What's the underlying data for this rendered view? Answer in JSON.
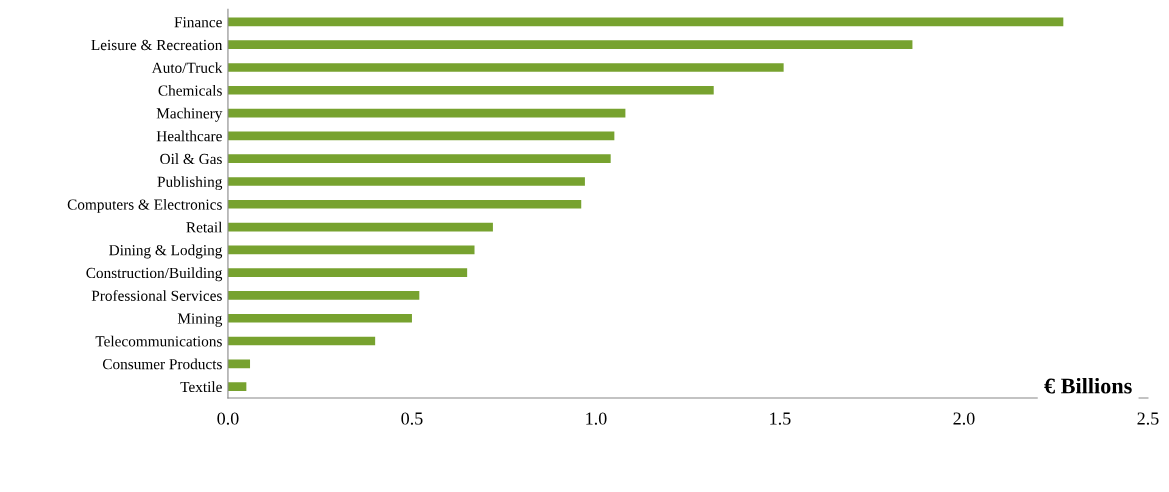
{
  "chart_data": {
    "type": "bar",
    "orientation": "horizontal",
    "xlabel": "€ Billions",
    "categories": [
      "Finance",
      "Leisure & Recreation",
      "Auto/Truck",
      "Chemicals",
      "Machinery",
      "Healthcare",
      "Oil & Gas",
      "Publishing",
      "Computers & Electronics",
      "Retail",
      "Dining & Lodging",
      "Construction/Building",
      "Professional Services",
      "Mining",
      "Telecommunications",
      "Consumer Products",
      "Textile"
    ],
    "values": [
      2.27,
      1.86,
      1.51,
      1.32,
      1.08,
      1.05,
      1.04,
      0.97,
      0.96,
      0.72,
      0.67,
      0.65,
      0.52,
      0.5,
      0.4,
      0.06,
      0.05
    ],
    "color": "#77a22f",
    "xlim": [
      0,
      2.5
    ],
    "xticks": [
      {
        "value": 0,
        "label": "0.0"
      },
      {
        "value": 0.5,
        "label": "0.5"
      },
      {
        "value": 1,
        "label": "1.0"
      },
      {
        "value": 1.5,
        "label": "1.5"
      },
      {
        "value": 2,
        "label": "2.0"
      },
      {
        "value": 2.5,
        "label": "2.5"
      }
    ],
    "grid": false,
    "legend": false
  }
}
